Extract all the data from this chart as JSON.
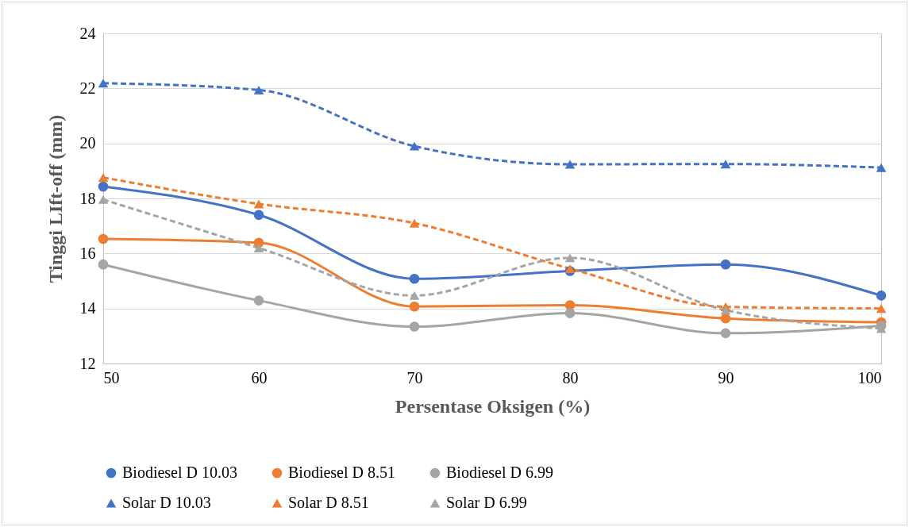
{
  "chart_data": {
    "type": "line",
    "xlabel": "Persentase Oksigen (%)",
    "ylabel": "Tinggi LIft-off (mm)",
    "x": [
      50,
      60,
      70,
      80,
      90,
      100
    ],
    "xlim": [
      50,
      100
    ],
    "xticks": [
      50,
      60,
      70,
      80,
      90,
      100
    ],
    "ylim": [
      12,
      24
    ],
    "yticks": [
      12,
      14,
      16,
      18,
      20,
      22,
      24
    ],
    "grid": "y",
    "legend": "bottom",
    "series": [
      {
        "name": "Biodiesel D 10.03",
        "color": "#4472c4",
        "marker": "circle",
        "line_style": "solid",
        "values": [
          18.43,
          17.4,
          15.08,
          15.36,
          15.6,
          14.47
        ]
      },
      {
        "name": "Biodiesel D 8.51",
        "color": "#ed7d31",
        "marker": "circle",
        "line_style": "solid",
        "values": [
          16.53,
          16.39,
          14.07,
          14.12,
          13.64,
          13.5
        ]
      },
      {
        "name": "Biodiesel D 6.99",
        "color": "#a5a5a5",
        "marker": "circle",
        "line_style": "solid",
        "values": [
          15.6,
          14.29,
          13.34,
          13.83,
          13.1,
          13.37
        ]
      },
      {
        "name": "Solar D 10.03",
        "color": "#4472c4",
        "marker": "triangle",
        "line_style": "dashed",
        "values": [
          22.19,
          21.94,
          19.9,
          19.24,
          19.25,
          19.12
        ]
      },
      {
        "name": "Solar D 8.51",
        "color": "#ed7d31",
        "marker": "triangle",
        "line_style": "dashed",
        "values": [
          18.76,
          17.8,
          17.1,
          15.45,
          14.06,
          14.0
        ]
      },
      {
        "name": "Solar D 6.99",
        "color": "#a5a5a5",
        "marker": "triangle",
        "line_style": "dashed",
        "values": [
          17.96,
          16.2,
          14.47,
          15.84,
          13.94,
          13.27
        ]
      }
    ]
  }
}
